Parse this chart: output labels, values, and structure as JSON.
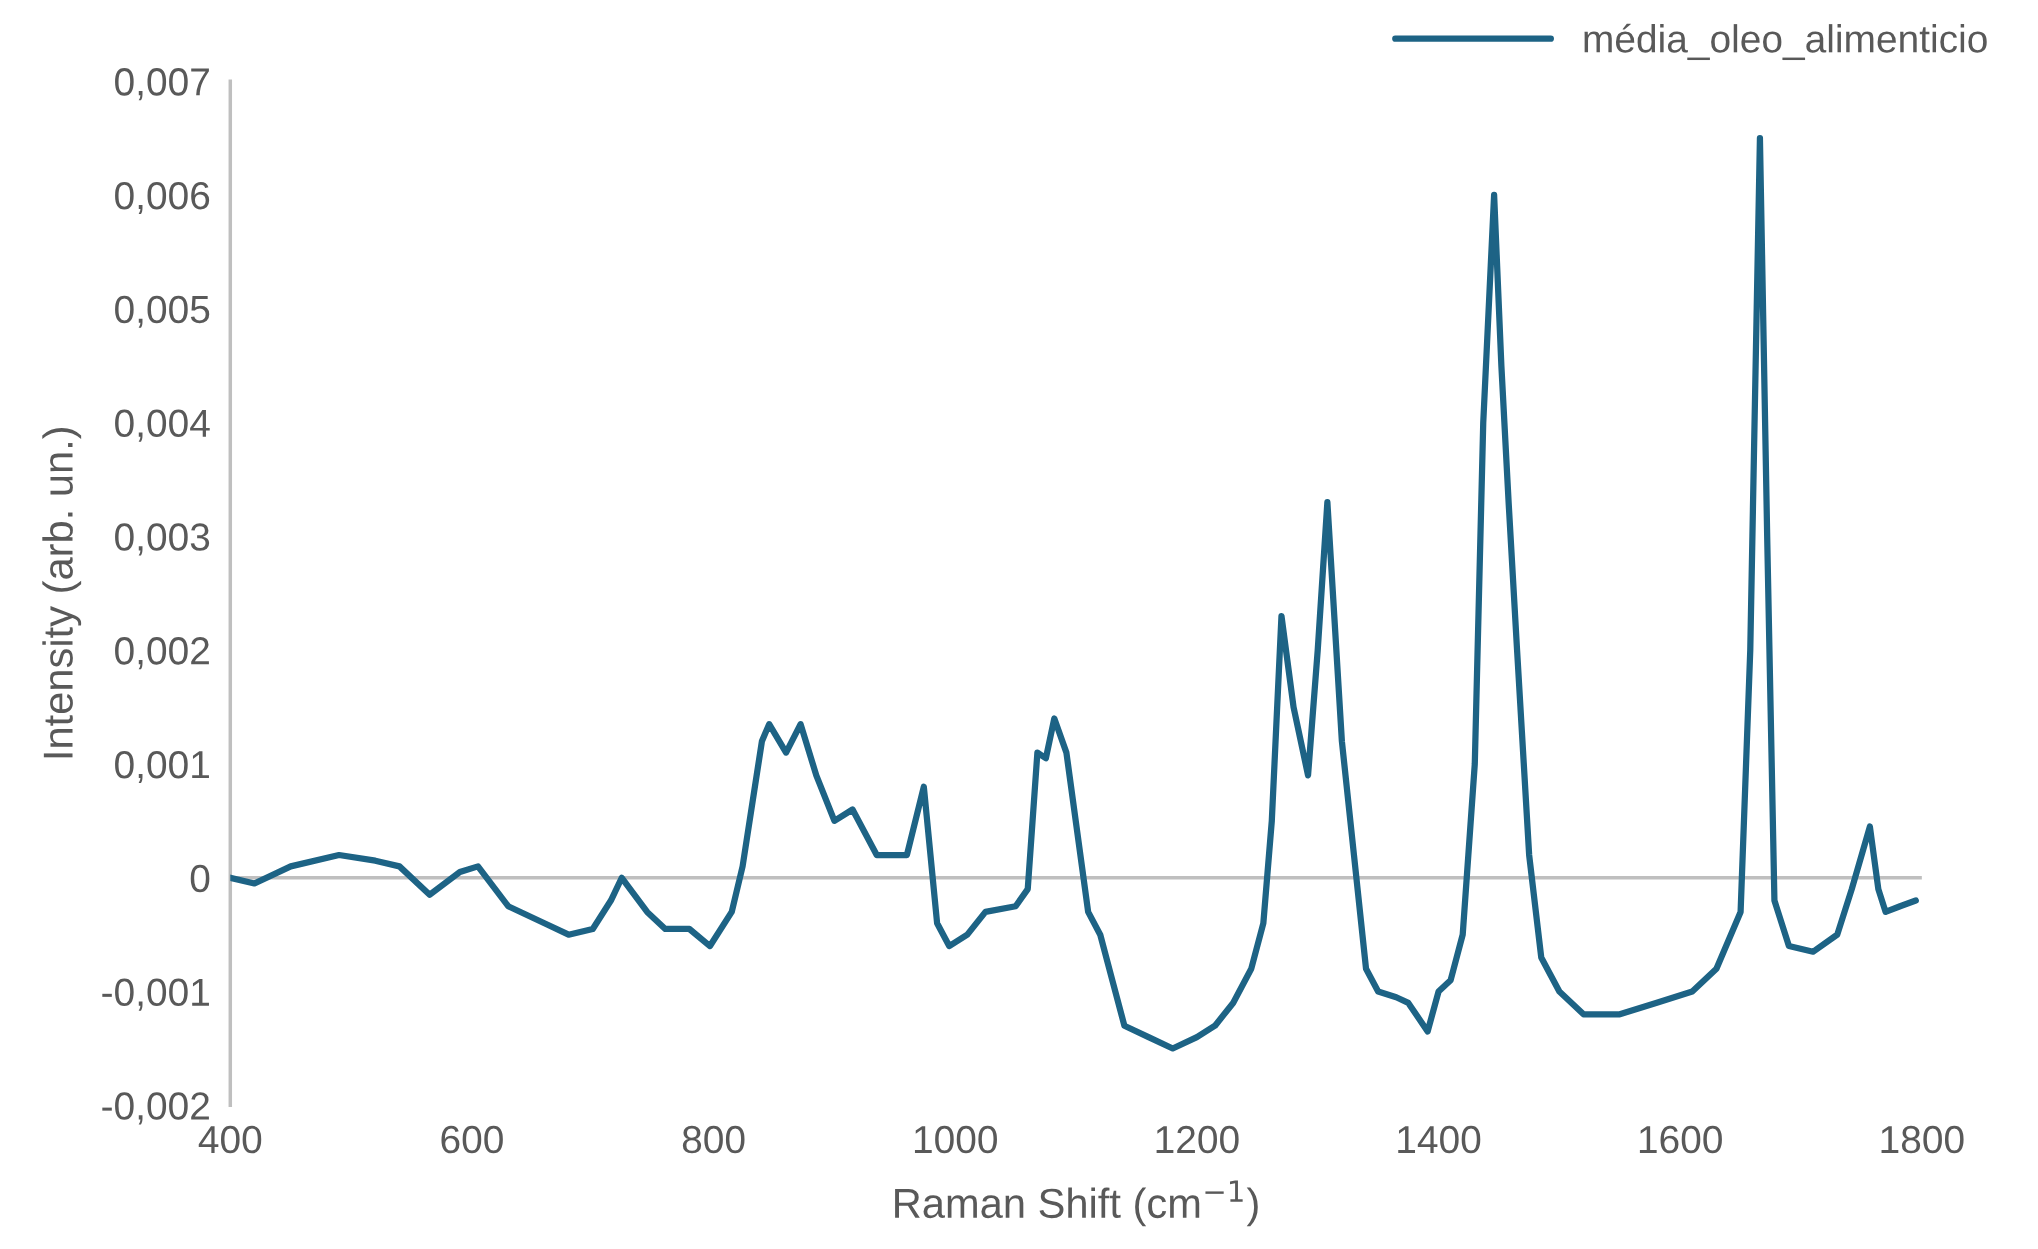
{
  "chart_data": {
    "type": "line",
    "xlabel": "Raman Shift (cm$^{−1}$)",
    "ylabel": "Intensity (arb. un.)",
    "xlim": [
      400,
      1800
    ],
    "xticks": [
      400,
      600,
      800,
      1000,
      1200,
      1400,
      1600,
      1800
    ],
    "ylim": [
      -0.002,
      0.007
    ],
    "yticks": [
      {
        "value": -0.002,
        "label": "-0,002"
      },
      {
        "value": -0.001,
        "label": "-0,001"
      },
      {
        "value": 0,
        "label": "0"
      },
      {
        "value": 0.001,
        "label": "0,001"
      },
      {
        "value": 0.002,
        "label": "0,002"
      },
      {
        "value": 0.003,
        "label": "0,003"
      },
      {
        "value": 0.004,
        "label": "0,004"
      },
      {
        "value": 0.005,
        "label": "0,005"
      },
      {
        "value": 0.006,
        "label": "0,006"
      },
      {
        "value": 0.007,
        "label": "0,007"
      }
    ],
    "grid": false,
    "legend": "top right",
    "marker": "none",
    "line_style": "solid",
    "ref_lines": [
      {
        "axis": "y",
        "value": 0,
        "color": "#bfbfbf"
      }
    ],
    "x": [
      400,
      420,
      450,
      490,
      520,
      540,
      565,
      590,
      605,
      630,
      660,
      680,
      700,
      715,
      724,
      745,
      760,
      780,
      797,
      815,
      824,
      840,
      846,
      860,
      872,
      885,
      900,
      915,
      925,
      935,
      960,
      974,
      985,
      995,
      1010,
      1025,
      1050,
      1060,
      1068,
      1075,
      1082,
      1092,
      1110,
      1120,
      1130,
      1140,
      1160,
      1180,
      1200,
      1215,
      1230,
      1245,
      1255,
      1262,
      1270,
      1280,
      1292,
      1300,
      1308,
      1320,
      1330,
      1340,
      1350,
      1365,
      1375,
      1391,
      1400,
      1410,
      1420,
      1430,
      1437,
      1446,
      1452,
      1458,
      1465,
      1475,
      1485,
      1500,
      1520,
      1550,
      1580,
      1610,
      1630,
      1650,
      1658,
      1666,
      1672,
      1678,
      1690,
      1710,
      1730,
      1742,
      1757,
      1764,
      1770,
      1782,
      1795
    ],
    "series": [
      {
        "name": "média_oleo_alimenticio",
        "color": "#1d6385",
        "values": [
          0,
          -5e-05,
          0.0001,
          0.0002,
          0.00015,
          0.0001,
          -0.00015,
          5e-05,
          0.0001,
          -0.00025,
          -0.0004,
          -0.0005,
          -0.00045,
          -0.0002,
          0,
          -0.0003,
          -0.00045,
          -0.00045,
          -0.0006,
          -0.0003,
          0.0001,
          0.0012,
          0.00135,
          0.0011,
          0.00135,
          0.0009,
          0.0005,
          0.0006,
          0.0004,
          0.0002,
          0.0002,
          0.0008,
          -0.0004,
          -0.0006,
          -0.0005,
          -0.0003,
          -0.00025,
          -0.0001,
          0.0011,
          0.00105,
          0.0014,
          0.0011,
          -0.0003,
          -0.0005,
          -0.0009,
          -0.0013,
          -0.0014,
          -0.0015,
          -0.0014,
          -0.0013,
          -0.0011,
          -0.0008,
          -0.0004,
          0.0005,
          0.0023,
          0.0015,
          0.0009,
          0.002,
          0.0033,
          0.0012,
          0.0002,
          -0.0008,
          -0.001,
          -0.00105,
          -0.0011,
          -0.00135,
          -0.001,
          -0.0009,
          -0.0005,
          0.001,
          0.004,
          0.006,
          0.0045,
          0.0033,
          0.002,
          0.0002,
          -0.0007,
          -0.001,
          -0.0012,
          -0.0012,
          -0.0011,
          -0.001,
          -0.0008,
          -0.0003,
          0.002,
          0.0065,
          0.003,
          -0.0002,
          -0.0006,
          -0.00065,
          -0.0005,
          -0.0001,
          0.00045,
          -0.0001,
          -0.0003,
          -0.00025,
          -0.0002
        ]
      }
    ]
  }
}
